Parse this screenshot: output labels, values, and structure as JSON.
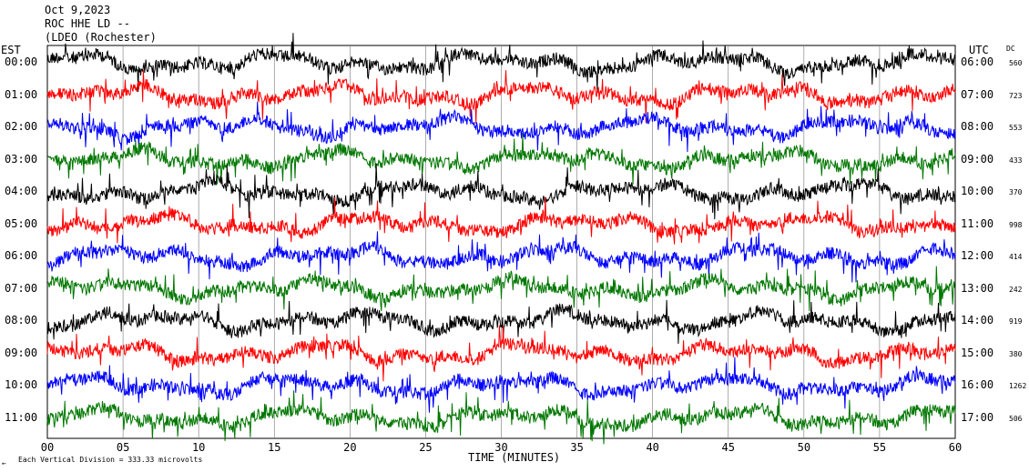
{
  "header": {
    "date": "Oct 9,2023",
    "station": "ROC HHE LD --",
    "network": "(LDEO (Rochester)"
  },
  "left_zone": "EST",
  "right_zone": "UTC",
  "dc_label": "DC",
  "footer": {
    "xlabel": "TIME (MINUTES)",
    "scale_note": "Each Vertical Division = 333.33 microvolts",
    "corner_mark": "←"
  },
  "colors": {
    "black": "#000000",
    "red": "#ff0000",
    "blue": "#0000ff",
    "green": "#007700"
  },
  "chart_data": {
    "type": "line",
    "title": "",
    "xlabel": "TIME (MINUTES)",
    "ylabel": "",
    "xlim": [
      0,
      60
    ],
    "x_ticks": [
      "00",
      "05",
      "10",
      "15",
      "20",
      "25",
      "30",
      "35",
      "40",
      "45",
      "50",
      "55",
      "60"
    ],
    "grid": "vertical lines every 5 minutes",
    "series": [
      {
        "est": "00:00",
        "utc": "06:00",
        "dc": "560",
        "color": "black"
      },
      {
        "est": "01:00",
        "utc": "07:00",
        "dc": "723",
        "color": "red"
      },
      {
        "est": "02:00",
        "utc": "08:00",
        "dc": "553",
        "color": "blue"
      },
      {
        "est": "03:00",
        "utc": "09:00",
        "dc": "433",
        "color": "green"
      },
      {
        "est": "04:00",
        "utc": "10:00",
        "dc": "370",
        "color": "black"
      },
      {
        "est": "05:00",
        "utc": "11:00",
        "dc": "998",
        "color": "red"
      },
      {
        "est": "06:00",
        "utc": "12:00",
        "dc": "414",
        "color": "blue"
      },
      {
        "est": "07:00",
        "utc": "13:00",
        "dc": "242",
        "color": "green"
      },
      {
        "est": "08:00",
        "utc": "14:00",
        "dc": "919",
        "color": "black"
      },
      {
        "est": "09:00",
        "utc": "15:00",
        "dc": "380",
        "color": "red"
      },
      {
        "est": "10:00",
        "utc": "16:00",
        "dc": "1262",
        "color": "blue"
      },
      {
        "est": "11:00",
        "utc": "17:00",
        "dc": "506",
        "color": "green"
      }
    ]
  }
}
